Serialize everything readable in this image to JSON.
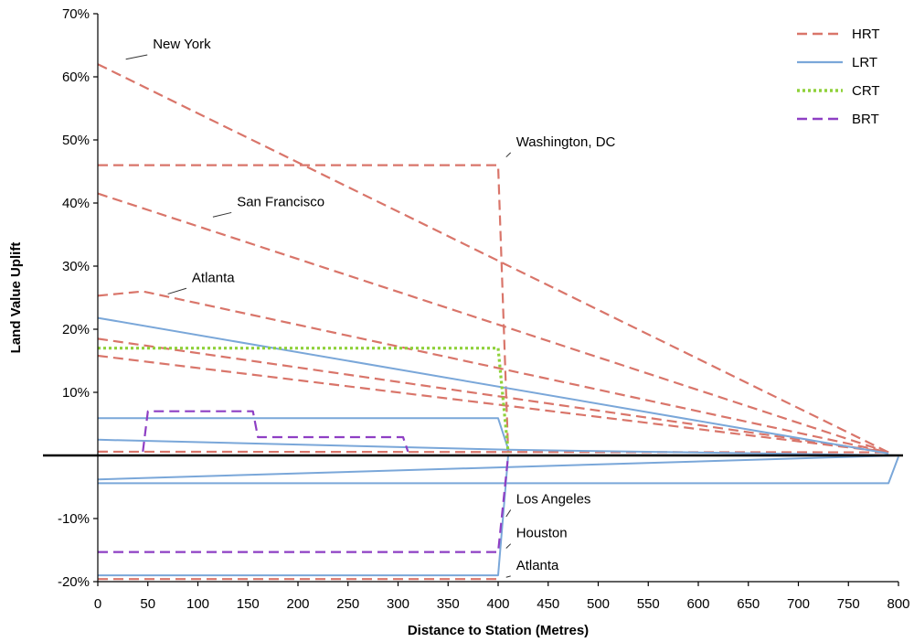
{
  "chart_data": {
    "type": "line",
    "xlabel": "Distance to Station (Metres)",
    "ylabel": "Land Value Uplift",
    "xlim": [
      0,
      800
    ],
    "ylim": [
      -20,
      70
    ],
    "x_ticks": [
      0,
      50,
      100,
      150,
      200,
      250,
      300,
      350,
      400,
      450,
      500,
      550,
      600,
      650,
      700,
      750,
      800
    ],
    "y_ticks": [
      -20,
      -10,
      0,
      10,
      20,
      30,
      40,
      50,
      60,
      70
    ],
    "y_tick_labels": [
      "-20%",
      "-10%",
      "",
      "10%",
      "20%",
      "30%",
      "40%",
      "50%",
      "60%",
      "70%"
    ],
    "grid": false,
    "legend_position": "top-right",
    "legend": [
      {
        "label": "HRT",
        "color": "#d9756a",
        "style": "dashed"
      },
      {
        "label": "LRT",
        "color": "#7aa7d9",
        "style": "solid"
      },
      {
        "label": "CRT",
        "color": "#8fd13a",
        "style": "dotted"
      },
      {
        "label": "BRT",
        "color": "#8e3fc4",
        "style": "dashed"
      }
    ],
    "series": [
      {
        "mode": "HRT",
        "points": [
          [
            0,
            62
          ],
          [
            790,
            0.5
          ]
        ]
      },
      {
        "mode": "HRT",
        "points": [
          [
            0,
            46
          ],
          [
            400,
            46
          ],
          [
            410,
            0.5
          ]
        ]
      },
      {
        "mode": "HRT",
        "points": [
          [
            0,
            41.5
          ],
          [
            790,
            0.5
          ]
        ]
      },
      {
        "mode": "HRT",
        "points": [
          [
            0,
            25.3
          ],
          [
            45,
            26
          ],
          [
            790,
            0.5
          ]
        ]
      },
      {
        "mode": "HRT",
        "points": [
          [
            0,
            18.5
          ],
          [
            790,
            0.5
          ]
        ]
      },
      {
        "mode": "HRT",
        "points": [
          [
            0,
            15.8
          ],
          [
            790,
            0.5
          ]
        ]
      },
      {
        "mode": "HRT",
        "points": [
          [
            0,
            0.6
          ],
          [
            790,
            0.5
          ]
        ]
      },
      {
        "mode": "HRT",
        "points": [
          [
            0,
            -19.6
          ],
          [
            400,
            -19.6
          ]
        ]
      },
      {
        "mode": "LRT",
        "points": [
          [
            0,
            21.8
          ],
          [
            790,
            0.3
          ]
        ]
      },
      {
        "mode": "LRT",
        "points": [
          [
            0,
            5.9
          ],
          [
            400,
            5.9
          ],
          [
            410,
            1
          ]
        ]
      },
      {
        "mode": "LRT",
        "points": [
          [
            0,
            2.5
          ],
          [
            410,
            0.9
          ],
          [
            800,
            0
          ]
        ]
      },
      {
        "mode": "LRT",
        "points": [
          [
            0,
            -3.8
          ],
          [
            800,
            0
          ]
        ]
      },
      {
        "mode": "LRT",
        "points": [
          [
            0,
            -4.4
          ],
          [
            790,
            -4.4
          ],
          [
            800,
            -0.2
          ]
        ]
      },
      {
        "mode": "LRT",
        "points": [
          [
            0,
            -19
          ],
          [
            400,
            -19
          ],
          [
            410,
            0
          ]
        ]
      },
      {
        "mode": "CRT",
        "points": [
          [
            0,
            17
          ],
          [
            400,
            17
          ],
          [
            410,
            0.5
          ]
        ]
      },
      {
        "mode": "BRT",
        "points": [
          [
            45,
            0.6
          ],
          [
            50,
            7
          ],
          [
            155,
            7
          ],
          [
            160,
            2.9
          ],
          [
            305,
            2.9
          ],
          [
            310,
            0.6
          ]
        ]
      },
      {
        "mode": "BRT",
        "points": [
          [
            0,
            -15.3
          ],
          [
            400,
            -15.3
          ],
          [
            410,
            0
          ]
        ]
      }
    ],
    "annotations": [
      {
        "text": "New York",
        "x": 55,
        "y": 64.5,
        "ax": 28,
        "ay": 62.5
      },
      {
        "text": "Washington, DC",
        "x": 418,
        "y": 49,
        "ax": 408,
        "ay": 47
      },
      {
        "text": "San Francisco",
        "x": 139,
        "y": 39.5,
        "ax": 115,
        "ay": 37.5
      },
      {
        "text": "Atlanta",
        "x": 94,
        "y": 27.5,
        "ax": 70,
        "ay": 25.3
      },
      {
        "text": "Los Angeles",
        "x": 418,
        "y": -7.6,
        "ax": 408,
        "ay": -10
      },
      {
        "text": "Houston",
        "x": 418,
        "y": -13,
        "ax": 408,
        "ay": -15
      },
      {
        "text": "Atlanta",
        "x": 418,
        "y": -18.1,
        "ax": 408,
        "ay": -19.6
      }
    ]
  }
}
